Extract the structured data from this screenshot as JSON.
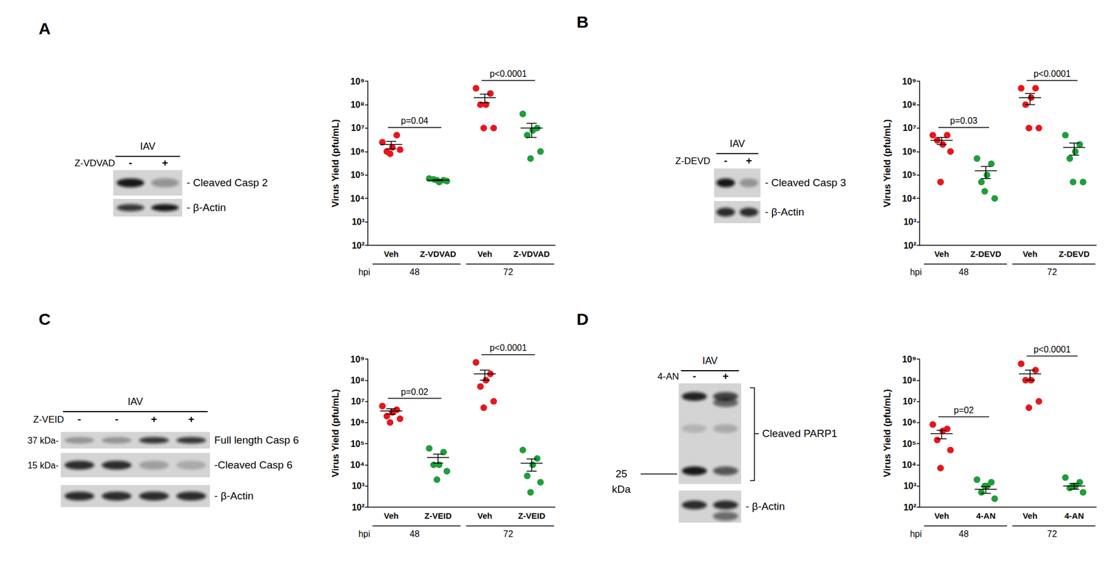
{
  "panels": [
    {
      "label": "A",
      "blot": {
        "header": "IAV",
        "treatment": "Z-VDVAD",
        "lanes": [
          "-",
          "+"
        ],
        "bands": [
          "- Cleaved Casp 2",
          "- β-Actin"
        ],
        "markers": []
      }
    },
    {
      "label": "B",
      "blot": {
        "header": "IAV",
        "treatment": "Z-DEVD",
        "lanes": [
          "-",
          "+"
        ],
        "bands": [
          "- Cleaved Casp 3",
          "- β-Actin"
        ],
        "markers": []
      }
    },
    {
      "label": "C",
      "blot": {
        "header": "IAV",
        "treatment": "Z-VEID",
        "lanes": [
          "-",
          "-",
          "+",
          "+"
        ],
        "bands": [
          "Full length Casp 6",
          "-Cleaved Casp 6",
          "- β-Actin"
        ],
        "markers": [
          {
            "band": 0,
            "label": "37 kDa-"
          },
          {
            "band": 1,
            "label": "15 kDa-"
          }
        ]
      }
    },
    {
      "label": "D",
      "blot": {
        "header": "IAV",
        "treatment": "4-AN",
        "lanes": [
          "-",
          "+"
        ],
        "bands": [
          "Cleaved PARP1",
          "- β-Actin"
        ],
        "markers": [
          {
            "band": 0,
            "label": "25 kDa"
          }
        ]
      }
    }
  ],
  "chart_data": [
    {
      "type": "scatter",
      "ylabel": "Virus Yield (pfu/mL)",
      "log": "y",
      "grid": false,
      "categories": [
        "Veh",
        "Z-VDVAD",
        "Veh",
        "Z-VDVAD"
      ],
      "groups": [
        "48",
        "72"
      ],
      "group_title": "hpi",
      "colors": [
        "#e8161c",
        "#1f9e3a",
        "#e8161c",
        "#1f9e3a"
      ],
      "ylim": [
        100,
        1000000000
      ],
      "yticks": [
        {
          "value": 100,
          "label": "10²"
        },
        {
          "value": 1000,
          "label": "10³"
        },
        {
          "value": 10000,
          "label": "10⁴"
        },
        {
          "value": 100000,
          "label": "10⁵"
        },
        {
          "value": 1000000,
          "label": "10⁶"
        },
        {
          "value": 10000000,
          "label": "10⁷"
        },
        {
          "value": 100000000,
          "label": "10⁸"
        },
        {
          "value": 1000000000,
          "label": "10⁹"
        }
      ],
      "points": [
        [
          2500000,
          5000000,
          1500000,
          1000000,
          1200000,
          800000
        ],
        [
          70000,
          60000,
          50000,
          65000,
          55000,
          60000
        ],
        [
          500000000,
          300000000,
          100000000,
          100000000,
          10000000,
          10000000
        ],
        [
          40000000,
          10000000,
          8000000,
          5000000,
          1000000,
          500000
        ]
      ],
      "mean": [
        2000000,
        60000,
        200000000,
        10000000
      ],
      "sem": [
        700000,
        3000,
        80000000,
        6000000
      ],
      "annotations": [
        {
          "between": [
            0,
            1
          ],
          "text": "p=0.04"
        },
        {
          "between": [
            2,
            3
          ],
          "text": "p<0.0001"
        }
      ]
    },
    {
      "type": "scatter",
      "ylabel": "Virus Yield (pfu/mL)",
      "log": "y",
      "grid": false,
      "categories": [
        "Veh",
        "Z-DEVD",
        "Veh",
        "Z-DEVD"
      ],
      "groups": [
        "48",
        "72"
      ],
      "group_title": "hpi",
      "colors": [
        "#e8161c",
        "#1f9e3a",
        "#e8161c",
        "#1f9e3a"
      ],
      "ylim": [
        100,
        1000000000
      ],
      "yticks": [
        {
          "value": 100,
          "label": "10²"
        },
        {
          "value": 1000,
          "label": "10³"
        },
        {
          "value": 10000,
          "label": "10⁴"
        },
        {
          "value": 100000,
          "label": "10⁵"
        },
        {
          "value": 1000000,
          "label": "10⁶"
        },
        {
          "value": 10000000,
          "label": "10⁷"
        },
        {
          "value": 100000000,
          "label": "10⁸"
        },
        {
          "value": 1000000000,
          "label": "10⁹"
        }
      ],
      "points": [
        [
          5000000,
          5000000,
          2000000,
          3000000,
          1000000,
          50000
        ],
        [
          500000,
          300000,
          100000,
          50000,
          10000,
          20000
        ],
        [
          500000000,
          500000000,
          200000000,
          100000000,
          10000000,
          10000000
        ],
        [
          5000000,
          2000000,
          1000000,
          500000,
          50000,
          50000
        ]
      ],
      "mean": [
        3000000,
        150000,
        200000000,
        1500000
      ],
      "sem": [
        1000000,
        80000,
        100000000,
        800000
      ],
      "annotations": [
        {
          "between": [
            0,
            1
          ],
          "text": "p=0.03"
        },
        {
          "between": [
            2,
            3
          ],
          "text": "p<0.0001"
        }
      ]
    },
    {
      "type": "scatter",
      "ylabel": "Virus Yield (pfu/mL)",
      "log": "y",
      "grid": false,
      "categories": [
        "Veh",
        "Z-VEID",
        "Veh",
        "Z-VEID"
      ],
      "groups": [
        "48",
        "72"
      ],
      "group_title": "hpi",
      "colors": [
        "#e8161c",
        "#1f9e3a",
        "#e8161c",
        "#1f9e3a"
      ],
      "ylim": [
        100,
        1000000000
      ],
      "yticks": [
        {
          "value": 100,
          "label": "10²"
        },
        {
          "value": 1000,
          "label": "10³"
        },
        {
          "value": 10000,
          "label": "10⁴"
        },
        {
          "value": 100000,
          "label": "10⁵"
        },
        {
          "value": 1000000,
          "label": "10⁶"
        },
        {
          "value": 10000000,
          "label": "10⁷"
        },
        {
          "value": 100000000,
          "label": "10⁸"
        },
        {
          "value": 1000000000,
          "label": "10⁹"
        }
      ],
      "points": [
        [
          6000000,
          4000000,
          3000000,
          2000000,
          1500000,
          1000000
        ],
        [
          60000,
          40000,
          10000,
          10000,
          5000,
          2000
        ],
        [
          700000000,
          200000000,
          100000000,
          50000000,
          10000000,
          5000000
        ],
        [
          50000,
          20000,
          10000,
          3000,
          1500,
          500
        ]
      ],
      "mean": [
        3500000,
        22000,
        200000000,
        12000
      ],
      "sem": [
        1000000,
        10000,
        100000000,
        7000
      ],
      "annotations": [
        {
          "between": [
            0,
            1
          ],
          "text": "p=0.02"
        },
        {
          "between": [
            2,
            3
          ],
          "text": "p<0.0001"
        }
      ]
    },
    {
      "type": "scatter",
      "ylabel": "Virus Yield (pfu/mL)",
      "log": "y",
      "grid": false,
      "categories": [
        "Veh",
        "4-AN",
        "Veh",
        "4-AN"
      ],
      "groups": [
        "48",
        "72"
      ],
      "group_title": "hpi",
      "colors": [
        "#e8161c",
        "#1f9e3a",
        "#e8161c",
        "#1f9e3a"
      ],
      "ylim": [
        100,
        1000000000
      ],
      "yticks": [
        {
          "value": 100,
          "label": "10²"
        },
        {
          "value": 1000,
          "label": "10³"
        },
        {
          "value": 10000,
          "label": "10⁴"
        },
        {
          "value": 100000,
          "label": "10⁵"
        },
        {
          "value": 1000000,
          "label": "10⁶"
        },
        {
          "value": 10000000,
          "label": "10⁷"
        },
        {
          "value": 100000000,
          "label": "10⁸"
        },
        {
          "value": 1000000000,
          "label": "10⁹"
        }
      ],
      "points": [
        [
          800000,
          500000,
          400000,
          150000,
          50000,
          7000
        ],
        [
          2000,
          1500,
          1000,
          500,
          250,
          1000
        ],
        [
          600000000,
          300000000,
          100000000,
          100000000,
          10000000,
          5000000
        ],
        [
          2500,
          1500,
          1000,
          800,
          500,
          1000
        ]
      ],
      "mean": [
        300000,
        700,
        200000000,
        1000
      ],
      "sem": [
        130000,
        250,
        100000000,
        300
      ],
      "annotations": [
        {
          "between": [
            0,
            1
          ],
          "text": "p=02"
        },
        {
          "between": [
            2,
            3
          ],
          "text": "p<0.0001"
        }
      ]
    }
  ]
}
